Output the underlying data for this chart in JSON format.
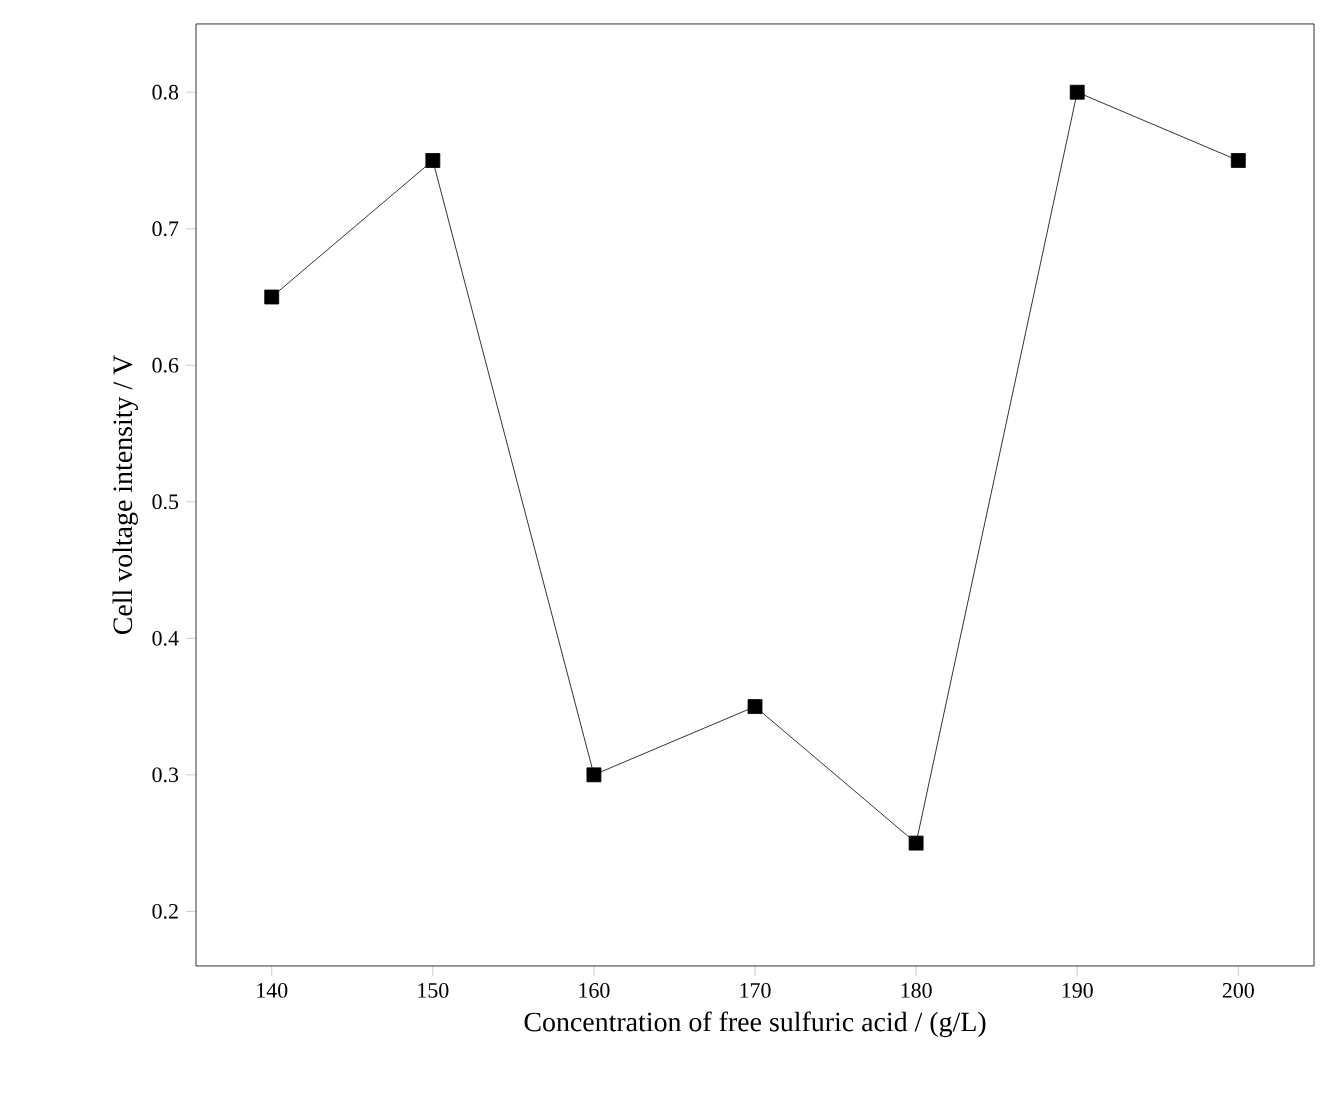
{
  "chart_data": {
    "type": "line",
    "xlabel": "Concentration of  free sulfuric acid / (g/L)",
    "ylabel": "Cell voltage intensity / V",
    "x": [
      140,
      150,
      160,
      170,
      180,
      190,
      200
    ],
    "values": [
      0.65,
      0.75,
      0.3,
      0.35,
      0.25,
      0.8,
      0.75
    ],
    "color": "#000000",
    "marker": "square",
    "line_style": "solid",
    "xlim": [
      135.3,
      204.7
    ],
    "ylim": [
      0.16,
      0.85
    ],
    "xticks": [
      140,
      150,
      160,
      170,
      180,
      190,
      200
    ],
    "yticks": [
      0.2,
      0.3,
      0.4,
      0.5,
      0.6,
      0.7,
      0.8
    ]
  }
}
